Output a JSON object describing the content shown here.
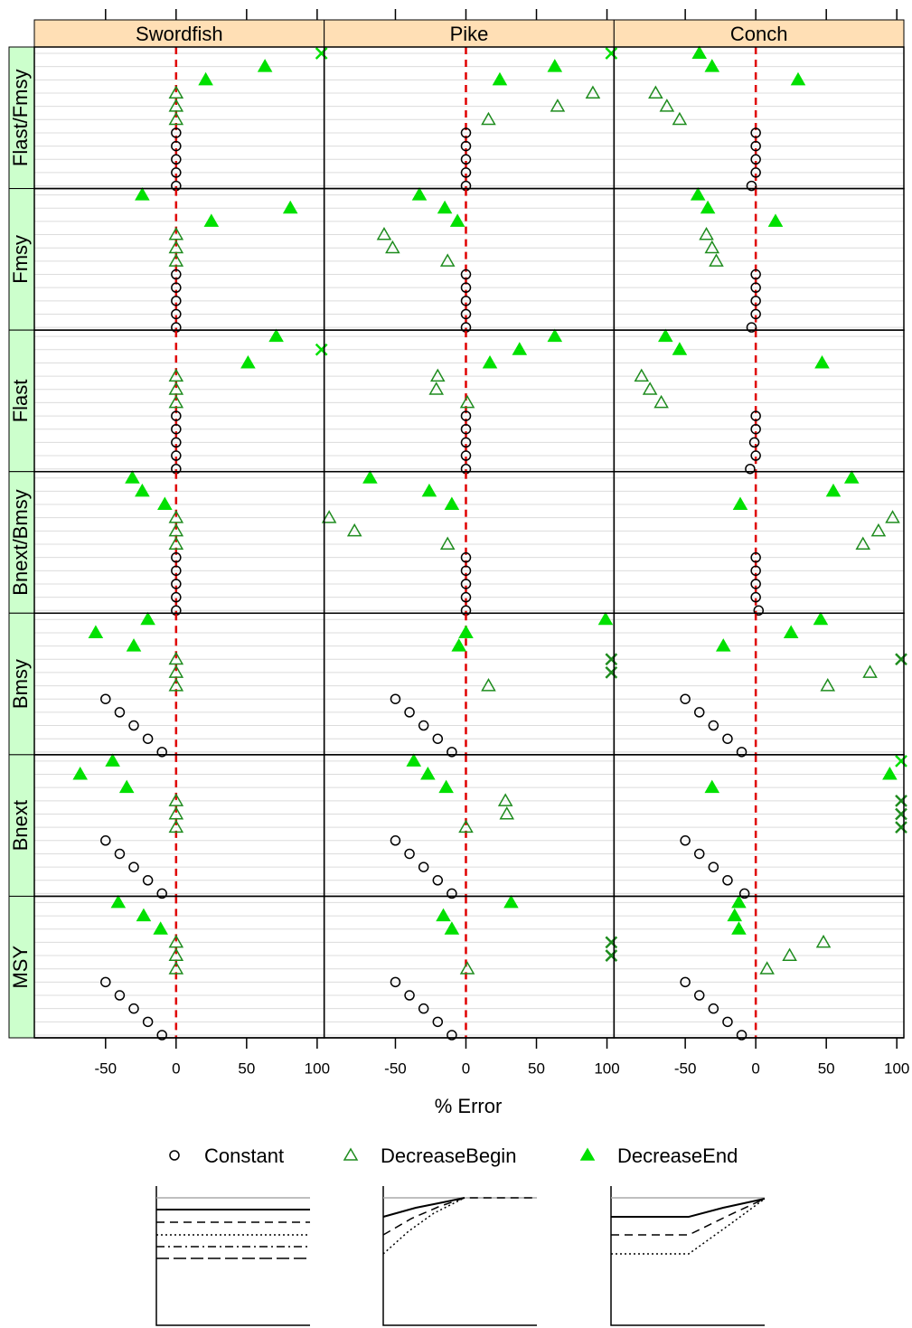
{
  "chart_data": {
    "type": "dotplot",
    "xlabel": "% Error",
    "stocks": [
      "Swordfish",
      "Pike",
      "Conch"
    ],
    "metrics": [
      "Flast/Fmsy",
      "Fmsy",
      "Flast",
      "Bnext/Bmsy",
      "Bmsy",
      "Bnext",
      "MSY"
    ],
    "series": [
      {
        "name": "Constant",
        "symbol": "circle",
        "color": "#000000"
      },
      {
        "name": "DecreaseBegin",
        "symbol": "open-triangle",
        "color": "#1e8c1e"
      },
      {
        "name": "DecreaseEnd",
        "symbol": "filled-triangle",
        "color": "#00e000"
      }
    ],
    "xlim": [
      -100.5,
      105
    ],
    "xticks": [
      -50,
      0,
      50,
      100
    ],
    "reference_line": 0,
    "grid": true,
    "values": [
      [
        [
          [
            0,
            0,
            0,
            0,
            0
          ],
          [
            0,
            0,
            0
          ],
          [
            110,
            63,
            21
          ]
        ],
        [
          [
            0,
            0,
            0,
            0,
            0
          ],
          [
            90,
            65,
            16
          ],
          [
            110,
            63,
            24
          ]
        ],
        [
          [
            0,
            0,
            0,
            0,
            -3
          ],
          [
            -71,
            -63,
            -54
          ],
          [
            -40,
            -31,
            30
          ]
        ]
      ],
      [
        [
          [
            0,
            0,
            0,
            0,
            0
          ],
          [
            0,
            0,
            0
          ],
          [
            -24,
            81,
            25
          ]
        ],
        [
          [
            0,
            0,
            0,
            0,
            0
          ],
          [
            -58,
            -52,
            -13
          ],
          [
            -33,
            -15,
            -6
          ]
        ],
        [
          [
            0,
            0,
            0,
            0,
            -3
          ],
          [
            -35,
            -31,
            -28
          ],
          [
            -41,
            -34,
            14
          ]
        ]
      ],
      [
        [
          [
            0,
            0,
            0,
            0,
            0
          ],
          [
            0,
            0,
            0
          ],
          [
            71,
            110,
            51
          ]
        ],
        [
          [
            0,
            0,
            0,
            0,
            0
          ],
          [
            -20,
            -21,
            1
          ],
          [
            63,
            38,
            17
          ]
        ],
        [
          [
            0,
            0,
            -1,
            0,
            -4
          ],
          [
            -81,
            -75,
            -67
          ],
          [
            -64,
            -54,
            47
          ]
        ]
      ],
      [
        [
          [
            0,
            0,
            0,
            0,
            0
          ],
          [
            0,
            0,
            0
          ],
          [
            -31,
            -24,
            -8
          ]
        ],
        [
          [
            0,
            0,
            0,
            0,
            0
          ],
          [
            -97,
            -79,
            -13
          ],
          [
            -68,
            -26,
            -10
          ]
        ],
        [
          [
            0,
            0,
            0,
            0,
            2
          ],
          [
            97,
            87,
            76
          ],
          [
            68,
            55,
            -11
          ]
        ]
      ],
      [
        [
          [
            -50,
            -40,
            -30,
            -20,
            -10
          ],
          [
            0,
            0,
            0
          ],
          [
            -20,
            -57,
            -30
          ]
        ],
        [
          [
            -50,
            -40,
            -30,
            -20,
            -10
          ],
          [
            110,
            110,
            16
          ],
          [
            99,
            0,
            -5
          ]
        ],
        [
          [
            -50,
            -40,
            -30,
            -20,
            -10
          ],
          [
            110,
            81,
            51
          ],
          [
            46,
            25,
            -23
          ]
        ]
      ],
      [
        [
          [
            -50,
            -40,
            -30,
            -20,
            -10
          ],
          [
            0,
            0,
            0
          ],
          [
            -45,
            -68,
            -35
          ]
        ],
        [
          [
            -50,
            -40,
            -30,
            -20,
            -10
          ],
          [
            28,
            29,
            0
          ],
          [
            -37,
            -27,
            -14
          ]
        ],
        [
          [
            -50,
            -40,
            -30,
            -20,
            -8
          ],
          [
            110,
            110,
            110
          ],
          [
            110,
            95,
            -31
          ]
        ]
      ],
      [
        [
          [
            -50,
            -40,
            -30,
            -20,
            -10
          ],
          [
            0,
            0,
            0
          ],
          [
            -41,
            -23,
            -11
          ]
        ],
        [
          [
            -50,
            -40,
            -30,
            -20,
            -10
          ],
          [
            110,
            110,
            1
          ],
          [
            32,
            -16,
            -10
          ]
        ],
        [
          [
            -50,
            -40,
            -30,
            -20,
            -10
          ],
          [
            48,
            24,
            8
          ],
          [
            -12,
            -15,
            -12
          ]
        ]
      ]
    ]
  }
}
